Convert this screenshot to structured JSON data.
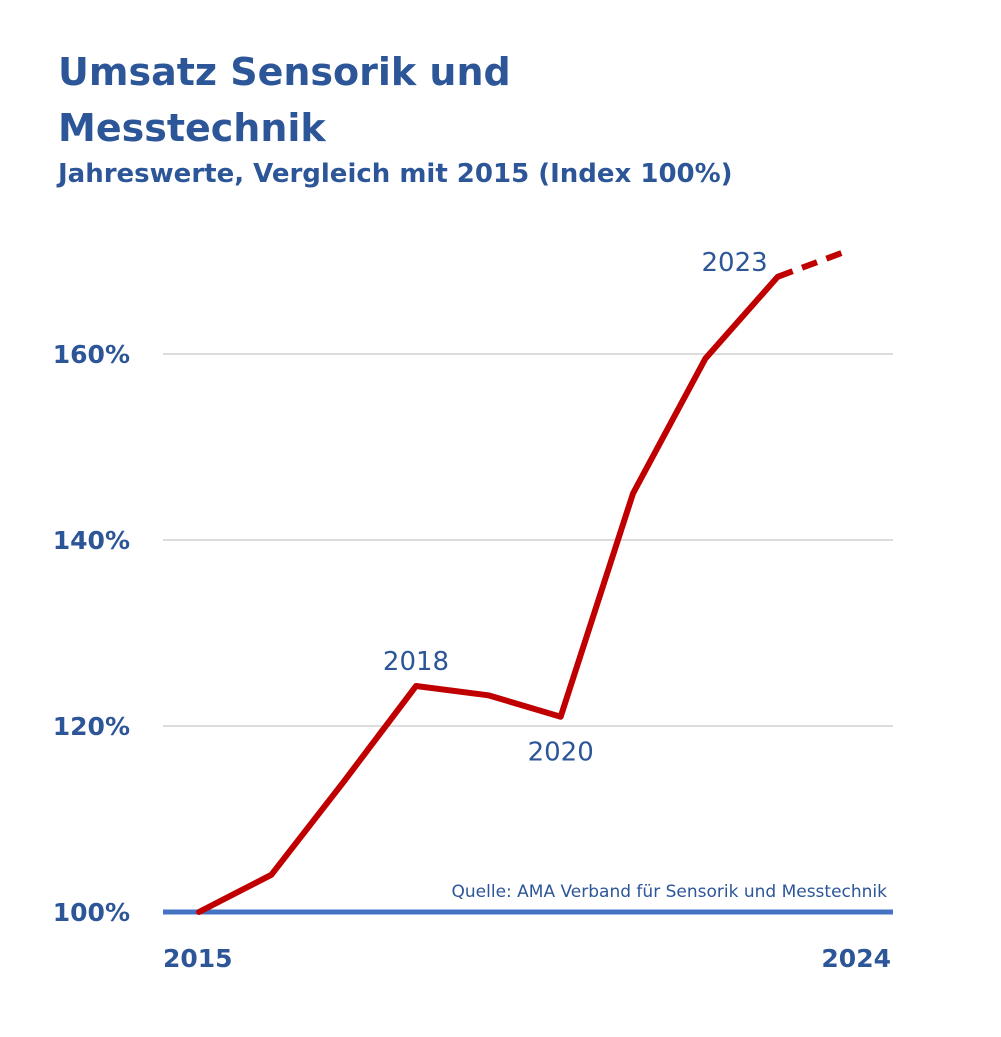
{
  "title_lines": [
    "Umsatz Sensorik und",
    "Messtechnik"
  ],
  "subtitle": "Jahreswerte, Vergleich mit 2015 (Index 100%)",
  "source": "Quelle: AMA Verband für Sensorik und Messtechnik",
  "colors": {
    "text": "#2c5697",
    "line": "#c00000",
    "baseline": "#4472c4",
    "grid": "#d0d0d0"
  },
  "chart_data": {
    "type": "line",
    "title": "Umsatz Sensorik und Messtechnik",
    "subtitle": "Jahreswerte, Vergleich mit 2015 (Index 100%)",
    "x": [
      2015,
      2016,
      2017,
      2018,
      2019,
      2020,
      2021,
      2022,
      2023,
      2024
    ],
    "series": [
      {
        "values": [
          100,
          104,
          114,
          124.3,
          123.3,
          121,
          145,
          159.5,
          168.3,
          171.2
        ],
        "style": "solid",
        "dashed_from_index": 8
      }
    ],
    "ylim": [
      100,
      172
    ],
    "yticks": [
      100,
      120,
      140,
      160
    ],
    "ytick_labels": [
      "100%",
      "120%",
      "140%",
      "160%"
    ],
    "xtick_labels": [
      "2015",
      "2024"
    ],
    "annotations": [
      {
        "x": 2018,
        "text": "2018",
        "position": "above"
      },
      {
        "x": 2020,
        "text": "2020",
        "position": "below"
      },
      {
        "x": 2023,
        "text": "2023",
        "position": "left"
      }
    ],
    "grid": true,
    "legend": "none"
  }
}
